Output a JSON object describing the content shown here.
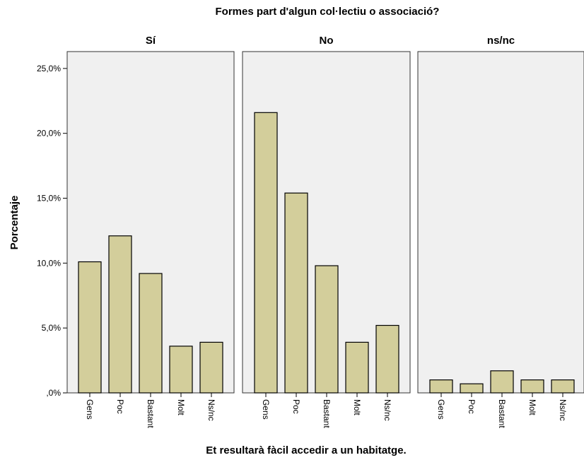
{
  "chart_data": {
    "type": "bar",
    "title": "Formes part d'algun col·lectiu o associació?",
    "xlabel": "Et resultarà fàcil accedir a un habitatge.",
    "ylabel": "Porcentaje",
    "categories": [
      "Gens",
      "Poc",
      "Bastant",
      "Molt",
      "Ns/nc"
    ],
    "ylim": [
      0,
      25
    ],
    "y_ticks": [
      0,
      5,
      10,
      15,
      20,
      25
    ],
    "y_tick_labels": [
      ",0%",
      "5,0%",
      "10,0%",
      "15,0%",
      "20,0%",
      "25,0%"
    ],
    "grid": false,
    "panels": [
      {
        "name": "Sí",
        "values": [
          10.1,
          12.1,
          9.2,
          3.6,
          3.9
        ]
      },
      {
        "name": "No",
        "values": [
          21.6,
          15.4,
          9.8,
          3.9,
          5.2
        ]
      },
      {
        "name": "ns/nc",
        "values": [
          1.0,
          0.7,
          1.7,
          1.0,
          1.0
        ]
      }
    ],
    "colors": {
      "bar_fill": "#d3ce9b",
      "bar_stroke": "#000000",
      "panel_bg": "#f0f0f0",
      "panel_border": "#333333"
    }
  }
}
